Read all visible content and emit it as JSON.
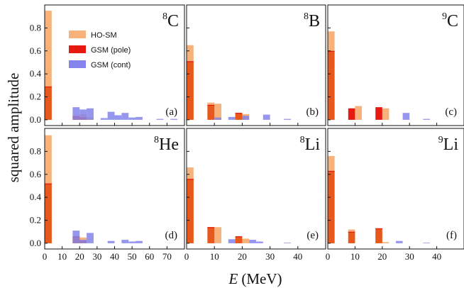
{
  "figure": {
    "ylabel": "squared amplitude",
    "xlabel_symbol": "E",
    "xlabel_unit": "(MeV)"
  },
  "legend": [
    {
      "label": "HO-SM",
      "color": "#f6b27a"
    },
    {
      "label": "GSM (pole)",
      "color": "#e61a10"
    },
    {
      "label": "GSM (cont)",
      "color": "#8484ec"
    }
  ],
  "colors": {
    "ho_sm": "#f6b27a",
    "gsm_pole": "#e61a10",
    "gsm_cont": "#8484ec",
    "overlap": "#e8581c"
  },
  "chart_data": [
    {
      "type": "bar",
      "panel": "a",
      "nucleus_mass": "8",
      "nucleus_symbol": "C",
      "xlim": [
        0,
        80
      ],
      "ylim": [
        -0.05,
        1.0
      ],
      "xticks": [
        0,
        10,
        20,
        30,
        40,
        50,
        60,
        70
      ],
      "yticks": [
        0.0,
        0.2,
        0.4,
        0.6,
        0.8
      ],
      "bar_width": 4,
      "series": [
        {
          "name": "HO-SM",
          "points": [
            [
              2,
              0.95
            ],
            [
              18,
              0.04
            ],
            [
              22,
              0.05
            ],
            [
              26,
              0.02
            ]
          ]
        },
        {
          "name": "GSM (pole)",
          "points": [
            [
              2,
              0.29
            ],
            [
              18,
              0.03
            ],
            [
              22,
              0.02
            ]
          ]
        },
        {
          "name": "GSM (cont)",
          "points": [
            [
              18,
              0.11
            ],
            [
              22,
              0.09
            ],
            [
              26,
              0.1
            ],
            [
              34,
              0.015
            ],
            [
              38,
              0.07
            ],
            [
              42,
              0.04
            ],
            [
              46,
              0.06
            ],
            [
              50,
              0.02
            ],
            [
              54,
              0.025
            ],
            [
              66,
              0.008
            ],
            [
              74,
              0.008
            ]
          ]
        }
      ]
    },
    {
      "type": "bar",
      "panel": "b",
      "nucleus_mass": "8",
      "nucleus_symbol": "B",
      "xlim": [
        0,
        50
      ],
      "ylim": [
        -0.05,
        1.0
      ],
      "xticks": [
        0,
        10,
        20,
        30,
        40
      ],
      "yticks": [
        0.0,
        0.2,
        0.4,
        0.6,
        0.8
      ],
      "bar_width": 2.5,
      "series": [
        {
          "name": "HO-SM",
          "points": [
            [
              1.25,
              0.65
            ],
            [
              8.75,
              0.15
            ],
            [
              11.25,
              0.14
            ],
            [
              18.75,
              0.05
            ],
            [
              21.25,
              0.05
            ]
          ]
        },
        {
          "name": "GSM (pole)",
          "points": [
            [
              1.25,
              0.51
            ],
            [
              8.75,
              0.13
            ],
            [
              18.75,
              0.06
            ]
          ]
        },
        {
          "name": "GSM (cont)",
          "points": [
            [
              11.25,
              0.02
            ],
            [
              16.25,
              0.025
            ],
            [
              21.25,
              0.035
            ],
            [
              28.75,
              0.045
            ],
            [
              36.25,
              0.008
            ]
          ]
        }
      ]
    },
    {
      "type": "bar",
      "panel": "c",
      "nucleus_mass": "9",
      "nucleus_symbol": "C",
      "xlim": [
        0,
        50
      ],
      "ylim": [
        -0.05,
        1.0
      ],
      "xticks": [
        0,
        10,
        20,
        30,
        40
      ],
      "yticks": [
        0.0,
        0.2,
        0.4,
        0.6,
        0.8
      ],
      "bar_width": 2.5,
      "series": [
        {
          "name": "HO-SM",
          "points": [
            [
              1.25,
              0.77
            ],
            [
              11.25,
              0.12
            ],
            [
              21.25,
              0.1
            ]
          ]
        },
        {
          "name": "GSM (pole)",
          "points": [
            [
              1.25,
              0.6
            ],
            [
              8.75,
              0.1
            ],
            [
              18.75,
              0.11
            ]
          ]
        },
        {
          "name": "GSM (cont)",
          "points": [
            [
              28.75,
              0.06
            ],
            [
              36.25,
              0.008
            ]
          ]
        }
      ]
    },
    {
      "type": "bar",
      "panel": "d",
      "nucleus_mass": "8",
      "nucleus_symbol": "He",
      "xlim": [
        0,
        80
      ],
      "ylim": [
        -0.05,
        1.0
      ],
      "xticks": [
        0,
        10,
        20,
        30,
        40,
        50,
        60,
        70
      ],
      "yticks": [
        0.0,
        0.2,
        0.4,
        0.6,
        0.8
      ],
      "bar_width": 4,
      "series": [
        {
          "name": "HO-SM",
          "points": [
            [
              2,
              0.94
            ],
            [
              18,
              0.05
            ],
            [
              22,
              0.05
            ]
          ]
        },
        {
          "name": "GSM (pole)",
          "points": [
            [
              2,
              0.52
            ],
            [
              18,
              0.06
            ],
            [
              22,
              0.02
            ]
          ]
        },
        {
          "name": "GSM (cont)",
          "points": [
            [
              18,
              0.11
            ],
            [
              22,
              0.03
            ],
            [
              26,
              0.09
            ],
            [
              38,
              0.02
            ],
            [
              46,
              0.03
            ],
            [
              50,
              0.015
            ],
            [
              54,
              0.02
            ]
          ]
        }
      ]
    },
    {
      "type": "bar",
      "panel": "e",
      "nucleus_mass": "8",
      "nucleus_symbol": "Li",
      "xlim": [
        0,
        50
      ],
      "ylim": [
        -0.05,
        1.0
      ],
      "xticks": [
        0,
        10,
        20,
        30,
        40
      ],
      "yticks": [
        0.0,
        0.2,
        0.4,
        0.6,
        0.8
      ],
      "bar_width": 2.5,
      "series": [
        {
          "name": "HO-SM",
          "points": [
            [
              1.25,
              0.66
            ],
            [
              8.75,
              0.14
            ],
            [
              11.25,
              0.14
            ],
            [
              18.75,
              0.04
            ],
            [
              21.25,
              0.04
            ]
          ]
        },
        {
          "name": "GSM (pole)",
          "points": [
            [
              1.25,
              0.56
            ],
            [
              8.75,
              0.14
            ],
            [
              18.75,
              0.06
            ]
          ]
        },
        {
          "name": "GSM (cont)",
          "points": [
            [
              16.25,
              0.035
            ],
            [
              23.75,
              0.03
            ],
            [
              26.25,
              0.015
            ],
            [
              36.25,
              0.005
            ]
          ]
        }
      ]
    },
    {
      "type": "bar",
      "panel": "f",
      "nucleus_mass": "9",
      "nucleus_symbol": "Li",
      "xlim": [
        0,
        50
      ],
      "ylim": [
        -0.05,
        1.0
      ],
      "xticks": [
        0,
        10,
        20,
        30,
        40
      ],
      "yticks": [
        0.0,
        0.2,
        0.4,
        0.6,
        0.8
      ],
      "bar_width": 2.5,
      "series": [
        {
          "name": "HO-SM",
          "points": [
            [
              1.25,
              0.76
            ],
            [
              8.75,
              0.12
            ],
            [
              18.75,
              0.1
            ],
            [
              21.25,
              0.01
            ]
          ]
        },
        {
          "name": "GSM (pole)",
          "points": [
            [
              1.25,
              0.63
            ],
            [
              8.75,
              0.1
            ],
            [
              18.75,
              0.13
            ]
          ]
        },
        {
          "name": "GSM (cont)",
          "points": [
            [
              26.25,
              0.02
            ],
            [
              36.25,
              0.005
            ]
          ]
        }
      ]
    }
  ]
}
